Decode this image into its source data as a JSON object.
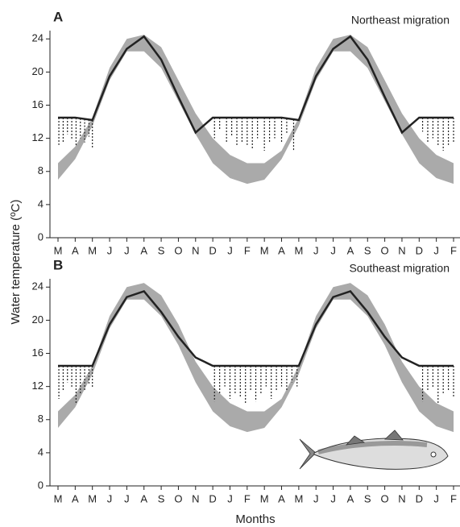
{
  "ylabel": "Water temperature (ºC)",
  "xlabel": "Months",
  "chart_data": [
    {
      "type": "line",
      "panel": "A",
      "title": "Northeast migration",
      "categories": [
        "M",
        "A",
        "M",
        "J",
        "J",
        "A",
        "S",
        "O",
        "N",
        "D",
        "J",
        "F",
        "M",
        "A",
        "M",
        "J",
        "J",
        "A",
        "S",
        "O",
        "N",
        "D",
        "J",
        "F"
      ],
      "series": [
        {
          "color": "#222222",
          "values": [
            14.5,
            14.5,
            14.2,
            19.5,
            22.8,
            24.3,
            21.5,
            17,
            12.7,
            14.5,
            14.5,
            14.5,
            14.5,
            14.5,
            14.2,
            19.5,
            22.8,
            24.3,
            21.5,
            17,
            12.7,
            14.5,
            14.5,
            14.5
          ]
        }
      ],
      "band": {
        "color": "#aaaaaa",
        "upper": [
          9,
          11,
          14.5,
          20.5,
          24,
          24.5,
          23,
          19,
          15,
          12,
          10,
          9,
          9,
          10.5,
          14.5,
          20.5,
          24,
          24.5,
          23,
          19,
          15,
          12,
          10,
          9
        ],
        "lower": [
          7,
          9.5,
          13.5,
          19,
          22.5,
          22.5,
          20.5,
          16.5,
          12.5,
          9,
          7.2,
          6.5,
          7,
          9.5,
          13.5,
          19,
          22.5,
          22.5,
          20.5,
          16.5,
          12.5,
          9,
          7.2,
          6.5
        ]
      },
      "dashes": {
        "x": [
          0.05,
          0.3,
          0.55,
          0.8,
          1.05,
          1.3,
          1.55,
          1.8,
          2.0,
          9.1,
          9.4,
          9.8,
          10.1,
          10.4,
          10.7,
          11.0,
          11.3,
          11.6,
          12.0,
          12.3,
          12.6,
          13.0,
          13.3,
          13.7,
          21.2,
          21.5,
          21.8,
          22.1,
          22.4,
          22.7,
          23.0
        ],
        "y": [
          11.2,
          11.5,
          12.5,
          11.8,
          11,
          12,
          11.5,
          12.2,
          10.8,
          12,
          13,
          11.5,
          12.2,
          11,
          11.5,
          11.2,
          10.8,
          12,
          10.5,
          11.5,
          12,
          11.5,
          12.5,
          10.5,
          12.8,
          11.5,
          12,
          11,
          10.5,
          11.2,
          11.5
        ]
      },
      "ylim": [
        0,
        25
      ],
      "yticks": [
        0,
        4,
        8,
        12,
        16,
        20,
        24
      ]
    },
    {
      "type": "line",
      "panel": "B",
      "title": "Southeast migration",
      "categories": [
        "M",
        "A",
        "M",
        "J",
        "J",
        "A",
        "S",
        "O",
        "N",
        "D",
        "J",
        "F",
        "M",
        "A",
        "M",
        "J",
        "J",
        "A",
        "S",
        "O",
        "N",
        "D",
        "J",
        "F"
      ],
      "series": [
        {
          "color": "#222222",
          "values": [
            14.5,
            14.5,
            14.5,
            19.5,
            22.8,
            23.5,
            21,
            18,
            15.5,
            14.5,
            14.5,
            14.5,
            14.5,
            14.5,
            14.5,
            19.5,
            22.8,
            23.5,
            21,
            18,
            15.5,
            14.5,
            14.5,
            14.5
          ]
        }
      ],
      "band": {
        "color": "#aaaaaa",
        "upper": [
          9,
          11,
          14.5,
          20.5,
          24,
          24.5,
          23,
          19.5,
          15,
          12,
          10,
          9,
          9,
          10.5,
          14.5,
          20.5,
          24,
          24.5,
          23,
          19.5,
          15,
          12,
          10,
          9
        ],
        "lower": [
          7,
          9.5,
          13.5,
          19,
          22.5,
          22.5,
          20.5,
          17,
          12.5,
          9,
          7.2,
          6.5,
          7,
          9.5,
          13.5,
          19,
          22.5,
          22.5,
          20.5,
          17,
          12.5,
          9,
          7.2,
          6.5
        ]
      },
      "dashes": {
        "x": [
          0.05,
          0.3,
          0.55,
          0.8,
          1.05,
          1.3,
          1.55,
          1.8,
          2.0,
          9.1,
          9.4,
          9.7,
          10.0,
          10.3,
          10.6,
          10.9,
          11.2,
          11.5,
          11.8,
          12.1,
          12.4,
          12.7,
          13.0,
          13.3,
          13.6,
          13.9,
          21.2,
          21.5,
          21.8,
          22.1,
          22.4,
          22.7,
          23.0
        ],
        "y": [
          10.5,
          11.5,
          12.5,
          11.8,
          10,
          11,
          11.5,
          12.2,
          11.8,
          10.2,
          11,
          12,
          10.5,
          11.2,
          10.8,
          10,
          11.5,
          10.2,
          11,
          12,
          10.5,
          11.5,
          12,
          11.5,
          12.5,
          12,
          10.2,
          11.5,
          11.8,
          10,
          11.2,
          11.5,
          10.8
        ]
      },
      "ylim": [
        0,
        25
      ],
      "yticks": [
        0,
        4,
        8,
        12,
        16,
        20,
        24
      ]
    }
  ]
}
